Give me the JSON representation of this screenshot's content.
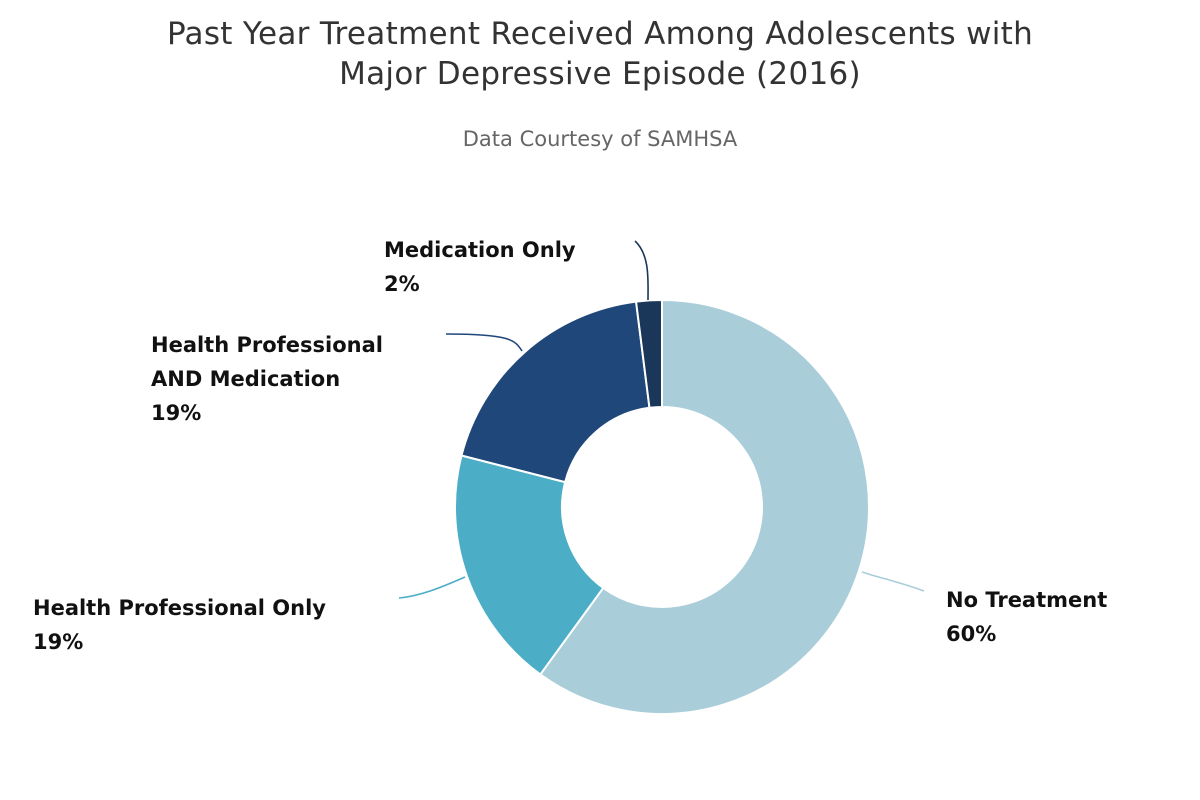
{
  "chart_data": {
    "type": "pie",
    "title_lines": [
      "Past Year Treatment Received Among Adolescents with",
      "Major Depressive Episode (2016)"
    ],
    "subtitle": "Data Courtesy of SAMHSA",
    "donut": true,
    "slices": [
      {
        "name": "No Treatment",
        "label_lines": [
          "No Treatment"
        ],
        "value": 60,
        "value_label": "60%",
        "color": "#a9cdd9"
      },
      {
        "name": "Health Professional Only",
        "label_lines": [
          "Health Professional Only"
        ],
        "value": 19,
        "value_label": "19%",
        "color": "#4badc6"
      },
      {
        "name": "Health Professional AND Medication",
        "label_lines": [
          "Health Professional",
          "AND Medication"
        ],
        "value": 19,
        "value_label": "19%",
        "color": "#20477a"
      },
      {
        "name": "Medication Only",
        "label_lines": [
          "Medication Only"
        ],
        "value": 2,
        "value_label": "2%",
        "color": "#1a3658"
      }
    ]
  }
}
